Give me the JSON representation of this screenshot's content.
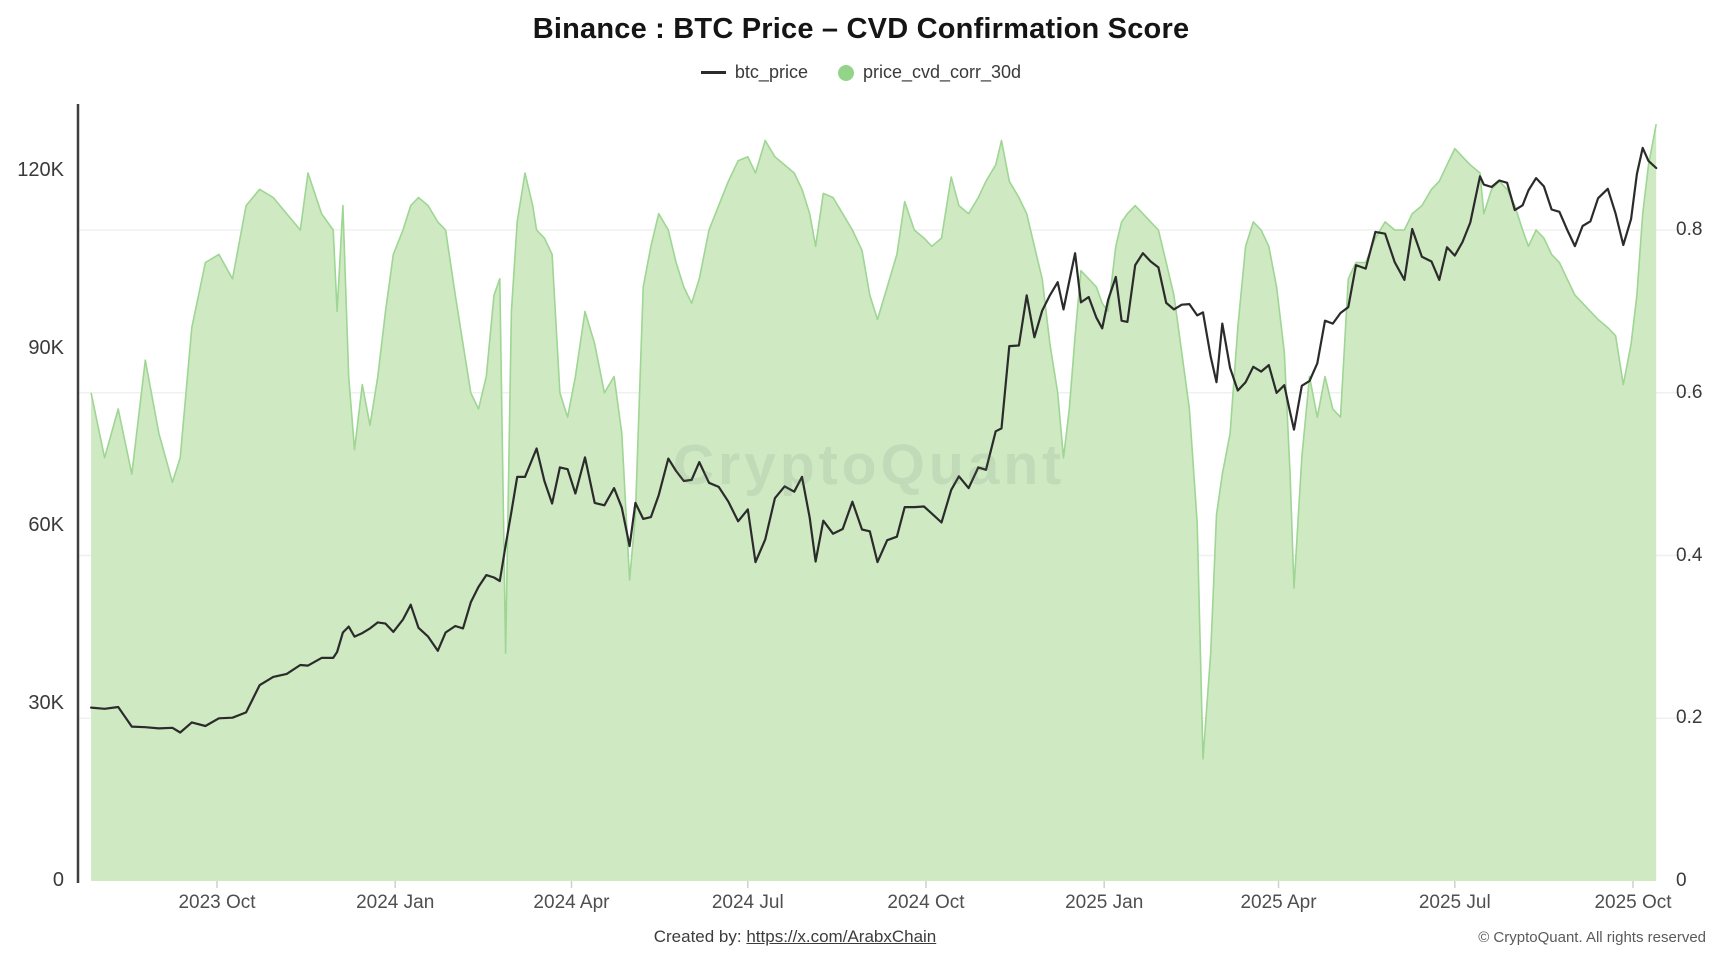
{
  "title": "Binance : BTC Price – CVD Confirmation Score",
  "legend": [
    {
      "label": "btc_price",
      "swatch": "line",
      "color": "#2b2b2b"
    },
    {
      "label": "price_cvd_corr_30d",
      "swatch": "dot",
      "color": "#94d489"
    }
  ],
  "watermark": "CryptoQuant",
  "footer": {
    "created_by": "Created by:",
    "link": "https://x.com/ArabxChain",
    "copyright": "© CryptoQuant. All rights reserved"
  },
  "chart_data": {
    "type": "line",
    "title": "Binance : BTC Price – CVD Confirmation Score",
    "legend_position": "top-center",
    "grid": "horizontal-faint",
    "x_ticks": [
      {
        "label": "2023 Oct",
        "date": "2023-10-01"
      },
      {
        "label": "2024 Jan",
        "date": "2024-01-01"
      },
      {
        "label": "2024 Apr",
        "date": "2024-04-01"
      },
      {
        "label": "2024 Jul",
        "date": "2024-07-01"
      },
      {
        "label": "2024 Oct",
        "date": "2024-10-01"
      },
      {
        "label": "2025 Jan",
        "date": "2025-01-01"
      },
      {
        "label": "2025 Apr",
        "date": "2025-04-01"
      },
      {
        "label": "2025 Jul",
        "date": "2025-07-01"
      },
      {
        "label": "2025 Oct",
        "date": "2025-10-01"
      }
    ],
    "left_axis": {
      "series": "btc_price",
      "min": 0,
      "max": 128000,
      "ticks": [
        {
          "label": "0",
          "value": 0
        },
        {
          "label": "30K",
          "value": 30000
        },
        {
          "label": "60K",
          "value": 60000
        },
        {
          "label": "90K",
          "value": 90000
        },
        {
          "label": "120K",
          "value": 120000
        }
      ]
    },
    "right_axis": {
      "series": "price_cvd_corr_30d",
      "min": 0,
      "max": 0.95,
      "ticks": [
        {
          "label": "0",
          "value": 0
        },
        {
          "label": "0.2",
          "value": 0.2
        },
        {
          "label": "0.4",
          "value": 0.4
        },
        {
          "label": "0.6",
          "value": 0.6
        },
        {
          "label": "0.8",
          "value": 0.8
        }
      ]
    },
    "series": [
      {
        "name": "btc_price",
        "type": "line",
        "axis": "left",
        "color": "#2b2b2b",
        "width": 2.2
      },
      {
        "name": "price_cvd_corr_30d",
        "type": "area",
        "axis": "right",
        "fill": "#cfe9c3",
        "stroke": "#9ed693",
        "width": 1.6
      }
    ],
    "points_format": [
      "date",
      "btc_price_usd",
      "price_cvd_corr_30d"
    ],
    "points": [
      [
        "2023-07-28",
        29300,
        0.6
      ],
      [
        "2023-08-04",
        29100,
        0.52
      ],
      [
        "2023-08-11",
        29400,
        0.58
      ],
      [
        "2023-08-18",
        26100,
        0.5
      ],
      [
        "2023-08-25",
        26000,
        0.64
      ],
      [
        "2023-09-01",
        25800,
        0.55
      ],
      [
        "2023-09-08",
        25900,
        0.49
      ],
      [
        "2023-09-12",
        25100,
        0.52
      ],
      [
        "2023-09-18",
        26800,
        0.68
      ],
      [
        "2023-09-25",
        26200,
        0.76
      ],
      [
        "2023-10-02",
        27500,
        0.77
      ],
      [
        "2023-10-09",
        27600,
        0.74
      ],
      [
        "2023-10-16",
        28500,
        0.83
      ],
      [
        "2023-10-23",
        33100,
        0.85
      ],
      [
        "2023-10-30",
        34500,
        0.84
      ],
      [
        "2023-11-06",
        35000,
        0.82
      ],
      [
        "2023-11-13",
        36500,
        0.8
      ],
      [
        "2023-11-17",
        36400,
        0.87
      ],
      [
        "2023-11-24",
        37700,
        0.82
      ],
      [
        "2023-11-30",
        37700,
        0.8
      ],
      [
        "2023-12-02",
        38700,
        0.7
      ],
      [
        "2023-12-05",
        42000,
        0.83
      ],
      [
        "2023-12-08",
        43000,
        0.62
      ],
      [
        "2023-12-11",
        41300,
        0.53
      ],
      [
        "2023-12-15",
        41900,
        0.61
      ],
      [
        "2023-12-19",
        42700,
        0.56
      ],
      [
        "2023-12-23",
        43700,
        0.62
      ],
      [
        "2023-12-27",
        43500,
        0.7
      ],
      [
        "2023-12-31",
        42100,
        0.77
      ],
      [
        "2024-01-05",
        44200,
        0.8
      ],
      [
        "2024-01-09",
        46700,
        0.83
      ],
      [
        "2024-01-13",
        42800,
        0.84
      ],
      [
        "2024-01-18",
        41300,
        0.83
      ],
      [
        "2024-01-23",
        38900,
        0.81
      ],
      [
        "2024-01-27",
        42000,
        0.8
      ],
      [
        "2024-02-01",
        43100,
        0.72
      ],
      [
        "2024-02-05",
        42700,
        0.66
      ],
      [
        "2024-02-09",
        47100,
        0.6
      ],
      [
        "2024-02-13",
        49700,
        0.58
      ],
      [
        "2024-02-17",
        51700,
        0.62
      ],
      [
        "2024-02-21",
        51300,
        0.72
      ],
      [
        "2024-02-24",
        50700,
        0.74
      ],
      [
        "2024-02-27",
        56700,
        0.28
      ],
      [
        "2024-03-01",
        62400,
        0.7
      ],
      [
        "2024-03-04",
        68300,
        0.81
      ],
      [
        "2024-03-08",
        68300,
        0.87
      ],
      [
        "2024-03-12",
        71500,
        0.83
      ],
      [
        "2024-03-14",
        73100,
        0.8
      ],
      [
        "2024-03-18",
        67600,
        0.79
      ],
      [
        "2024-03-22",
        63800,
        0.77
      ],
      [
        "2024-03-26",
        69900,
        0.6
      ],
      [
        "2024-03-30",
        69600,
        0.57
      ],
      [
        "2024-04-03",
        65500,
        0.62
      ],
      [
        "2024-04-08",
        71600,
        0.7
      ],
      [
        "2024-04-13",
        63900,
        0.66
      ],
      [
        "2024-04-18",
        63500,
        0.6
      ],
      [
        "2024-04-23",
        66400,
        0.62
      ],
      [
        "2024-04-27",
        63100,
        0.55
      ],
      [
        "2024-05-01",
        56600,
        0.37
      ],
      [
        "2024-05-04",
        63900,
        0.45
      ],
      [
        "2024-05-08",
        61200,
        0.73
      ],
      [
        "2024-05-12",
        61500,
        0.78
      ],
      [
        "2024-05-16",
        65200,
        0.82
      ],
      [
        "2024-05-21",
        71400,
        0.8
      ],
      [
        "2024-05-25",
        69300,
        0.76
      ],
      [
        "2024-05-29",
        67600,
        0.73
      ],
      [
        "2024-06-02",
        67800,
        0.71
      ],
      [
        "2024-06-06",
        70800,
        0.74
      ],
      [
        "2024-06-11",
        67300,
        0.8
      ],
      [
        "2024-06-16",
        66600,
        0.83
      ],
      [
        "2024-06-21",
        64100,
        0.86
      ],
      [
        "2024-06-26",
        60800,
        0.885
      ],
      [
        "2024-07-01",
        62800,
        0.89
      ],
      [
        "2024-07-05",
        53900,
        0.87
      ],
      [
        "2024-07-10",
        57700,
        0.91
      ],
      [
        "2024-07-15",
        64700,
        0.89
      ],
      [
        "2024-07-20",
        66700,
        0.88
      ],
      [
        "2024-07-25",
        65800,
        0.87
      ],
      [
        "2024-07-29",
        68300,
        0.85
      ],
      [
        "2024-08-02",
        61400,
        0.82
      ],
      [
        "2024-08-05",
        54000,
        0.78
      ],
      [
        "2024-08-09",
        60900,
        0.845
      ],
      [
        "2024-08-14",
        58700,
        0.84
      ],
      [
        "2024-08-19",
        59500,
        0.82
      ],
      [
        "2024-08-24",
        64100,
        0.8
      ],
      [
        "2024-08-29",
        59400,
        0.775
      ],
      [
        "2024-09-02",
        59100,
        0.72
      ],
      [
        "2024-09-06",
        53900,
        0.69
      ],
      [
        "2024-09-11",
        57600,
        0.73
      ],
      [
        "2024-09-16",
        58200,
        0.77
      ],
      [
        "2024-09-20",
        63200,
        0.835
      ],
      [
        "2024-09-25",
        63200,
        0.8
      ],
      [
        "2024-09-30",
        63300,
        0.79
      ],
      [
        "2024-10-04",
        62100,
        0.78
      ],
      [
        "2024-10-09",
        60600,
        0.79
      ],
      [
        "2024-10-14",
        66100,
        0.865
      ],
      [
        "2024-10-18",
        68400,
        0.83
      ],
      [
        "2024-10-23",
        66400,
        0.82
      ],
      [
        "2024-10-28",
        69900,
        0.84
      ],
      [
        "2024-11-01",
        69500,
        0.86
      ],
      [
        "2024-11-06",
        76000,
        0.88
      ],
      [
        "2024-11-09",
        76500,
        0.91
      ],
      [
        "2024-11-13",
        90400,
        0.86
      ],
      [
        "2024-11-18",
        90500,
        0.84
      ],
      [
        "2024-11-22",
        99000,
        0.82
      ],
      [
        "2024-11-26",
        91900,
        0.78
      ],
      [
        "2024-11-30",
        96400,
        0.74
      ],
      [
        "2024-12-04",
        99000,
        0.66
      ],
      [
        "2024-12-08",
        101200,
        0.6
      ],
      [
        "2024-12-11",
        96600,
        0.52
      ],
      [
        "2024-12-14",
        101400,
        0.58
      ],
      [
        "2024-12-17",
        106100,
        0.67
      ],
      [
        "2024-12-20",
        97800,
        0.75
      ],
      [
        "2024-12-24",
        98700,
        0.74
      ],
      [
        "2024-12-28",
        95200,
        0.73
      ],
      [
        "2024-12-31",
        93400,
        0.71
      ],
      [
        "2025-01-03",
        98200,
        0.7
      ],
      [
        "2025-01-07",
        102100,
        0.78
      ],
      [
        "2025-01-10",
        94700,
        0.81
      ],
      [
        "2025-01-13",
        94500,
        0.82
      ],
      [
        "2025-01-17",
        104100,
        0.83
      ],
      [
        "2025-01-21",
        106100,
        0.82
      ],
      [
        "2025-01-25",
        104700,
        0.81
      ],
      [
        "2025-01-29",
        103700,
        0.8
      ],
      [
        "2025-02-02",
        97700,
        0.76
      ],
      [
        "2025-02-06",
        96600,
        0.72
      ],
      [
        "2025-02-10",
        97400,
        0.65
      ],
      [
        "2025-02-14",
        97500,
        0.58
      ],
      [
        "2025-02-18",
        95600,
        0.44
      ],
      [
        "2025-02-21",
        96100,
        0.15
      ],
      [
        "2025-02-25",
        88600,
        0.28
      ],
      [
        "2025-02-28",
        84300,
        0.45
      ],
      [
        "2025-03-03",
        94200,
        0.5
      ],
      [
        "2025-03-07",
        86700,
        0.55
      ],
      [
        "2025-03-11",
        82900,
        0.68
      ],
      [
        "2025-03-15",
        84300,
        0.78
      ],
      [
        "2025-03-19",
        86900,
        0.81
      ],
      [
        "2025-03-23",
        86100,
        0.8
      ],
      [
        "2025-03-27",
        87200,
        0.78
      ],
      [
        "2025-03-31",
        82500,
        0.73
      ],
      [
        "2025-04-04",
        83800,
        0.65
      ],
      [
        "2025-04-07",
        79200,
        0.5
      ],
      [
        "2025-04-09",
        76300,
        0.36
      ],
      [
        "2025-04-13",
        83700,
        0.52
      ],
      [
        "2025-04-17",
        84500,
        0.62
      ],
      [
        "2025-04-21",
        87500,
        0.57
      ],
      [
        "2025-04-25",
        94700,
        0.62
      ],
      [
        "2025-04-29",
        94200,
        0.58
      ],
      [
        "2025-05-03",
        96000,
        0.57
      ],
      [
        "2025-05-07",
        97000,
        0.74
      ],
      [
        "2025-05-11",
        104100,
        0.76
      ],
      [
        "2025-05-16",
        103500,
        0.76
      ],
      [
        "2025-05-21",
        109700,
        0.79
      ],
      [
        "2025-05-26",
        109400,
        0.81
      ],
      [
        "2025-05-31",
        104600,
        0.8
      ],
      [
        "2025-06-05",
        101600,
        0.8
      ],
      [
        "2025-06-09",
        110200,
        0.82
      ],
      [
        "2025-06-14",
        105500,
        0.83
      ],
      [
        "2025-06-19",
        104700,
        0.85
      ],
      [
        "2025-06-23",
        101600,
        0.86
      ],
      [
        "2025-06-27",
        107100,
        0.88
      ],
      [
        "2025-07-01",
        105700,
        0.9
      ],
      [
        "2025-07-05",
        108000,
        0.89
      ],
      [
        "2025-07-09",
        111300,
        0.88
      ],
      [
        "2025-07-14",
        119100,
        0.87
      ],
      [
        "2025-07-16",
        117700,
        0.82
      ],
      [
        "2025-07-20",
        117300,
        0.85
      ],
      [
        "2025-07-24",
        118400,
        0.86
      ],
      [
        "2025-07-28",
        118000,
        0.85
      ],
      [
        "2025-08-01",
        113400,
        0.83
      ],
      [
        "2025-08-05",
        114200,
        0.8
      ],
      [
        "2025-08-08",
        116700,
        0.78
      ],
      [
        "2025-08-12",
        118800,
        0.8
      ],
      [
        "2025-08-16",
        117400,
        0.79
      ],
      [
        "2025-08-20",
        113500,
        0.77
      ],
      [
        "2025-08-24",
        113100,
        0.76
      ],
      [
        "2025-08-28",
        110100,
        0.74
      ],
      [
        "2025-09-01",
        107300,
        0.72
      ],
      [
        "2025-09-05",
        110700,
        0.71
      ],
      [
        "2025-09-09",
        111500,
        0.7
      ],
      [
        "2025-09-13",
        115400,
        0.69
      ],
      [
        "2025-09-18",
        117000,
        0.68
      ],
      [
        "2025-09-22",
        112800,
        0.67
      ],
      [
        "2025-09-26",
        107500,
        0.61
      ],
      [
        "2025-09-30",
        111900,
        0.66
      ],
      [
        "2025-10-03",
        119500,
        0.72
      ],
      [
        "2025-10-06",
        123900,
        0.82
      ],
      [
        "2025-10-09",
        121700,
        0.88
      ],
      [
        "2025-10-13",
        120500,
        0.93
      ]
    ]
  }
}
